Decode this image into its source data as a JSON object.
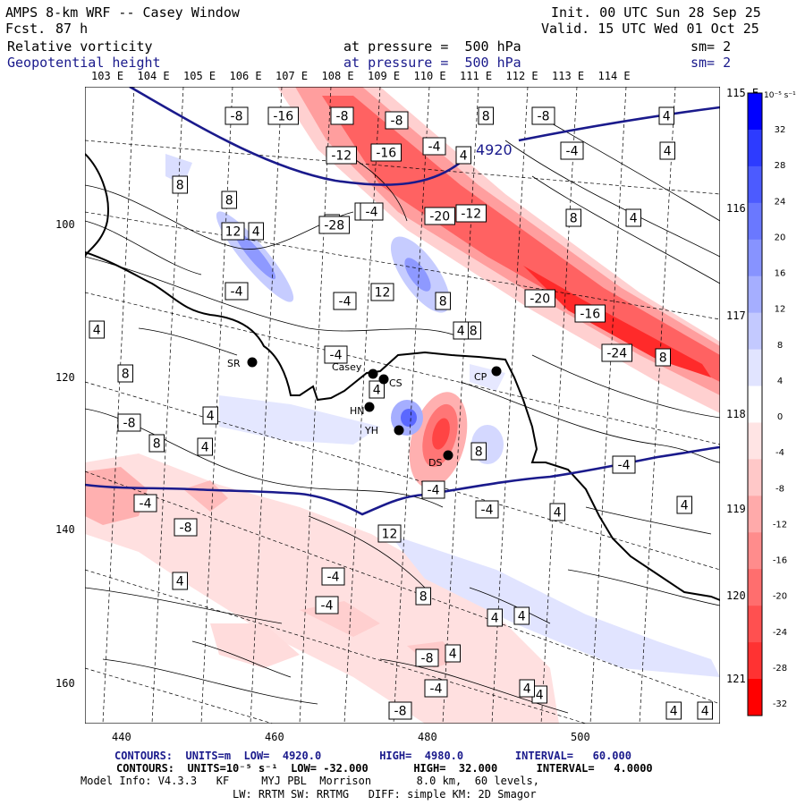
{
  "header": {
    "model_title": "AMPS 8-km WRF -- Casey Window",
    "fcst_label": "Fcst.",
    "fcst_value": "87 h",
    "init": "Init. 00 UTC Sun 28 Sep 25",
    "valid": "Valid. 15 UTC Wed 01 Oct 25",
    "field1_name": "Relative vorticity",
    "field1_level": "at pressure =  500 hPa",
    "field1_sm": "sm= 2",
    "field2_name": "Geopotential height",
    "field2_level": "at pressure =  500 hPa",
    "field2_sm": "sm= 2"
  },
  "top_lon_labels": [
    "103 E",
    "104 E",
    "105 E",
    "106 E",
    "107 E",
    "108 E",
    "109 E",
    "110 E",
    "111 E",
    "112 E",
    "113 E",
    "114 E"
  ],
  "right_lon_labels": [
    "115 E",
    "116 E",
    "117 E",
    "118 E",
    "119 E",
    "120 E",
    "121 E"
  ],
  "y_ticks": [
    "100",
    "120",
    "140",
    "160"
  ],
  "x_ticks": [
    "440",
    "460",
    "480",
    "500"
  ],
  "stations": [
    {
      "name": "SR"
    },
    {
      "name": "Casey"
    },
    {
      "name": "CS"
    },
    {
      "name": "CP"
    },
    {
      "name": "HN"
    },
    {
      "name": "YH"
    },
    {
      "name": "DS"
    }
  ],
  "height_contour_label": "4920",
  "vorticity_labels": [
    "-8",
    "-16",
    "-8",
    "-8",
    "8",
    "-8",
    "4",
    "-12",
    "-16",
    "-4",
    "4",
    "-4",
    "4",
    "8",
    "8",
    "-4",
    "-20",
    "-12",
    "8",
    "4",
    "12",
    "4",
    "4",
    "-4",
    "12",
    "-28",
    "-20",
    "-16",
    "-24",
    "8",
    "-4",
    "-4",
    "-4",
    "8",
    "4",
    "8",
    "4",
    "4",
    "8",
    "-8",
    "8",
    "4",
    "4",
    "-4",
    "12",
    "-8",
    "-8",
    "4",
    "4",
    "-4",
    "-4",
    "8",
    "4",
    "4",
    "-8",
    "-4",
    "4",
    "-8",
    "-4",
    "8",
    "4",
    "4",
    "4",
    "4",
    "4",
    "-4",
    "-4"
  ],
  "colorbar": {
    "unit": "10⁻⁵ s⁻¹",
    "ticks": [
      "32",
      "28",
      "24",
      "20",
      "16",
      "12",
      "8",
      "4",
      "0",
      "-4",
      "-8",
      "-12",
      "-16",
      "-20",
      "-24",
      "-28",
      "-32"
    ],
    "colors": [
      "#0000ff",
      "#2d3bff",
      "#4c5bff",
      "#6a78ff",
      "#8793ff",
      "#a5aeff",
      "#c3c9ff",
      "#e1e4ff",
      "#ffffff",
      "#ffe4e4",
      "#ffc8c8",
      "#ffaaaa",
      "#ff8c8c",
      "#ff6e6e",
      "#ff5050",
      "#ff3232",
      "#ff0000"
    ]
  },
  "footer": {
    "contours1": "CONTOURS:  UNITS=m  LOW=  4920.0         HIGH=  4980.0        INTERVAL=   60.000",
    "contours2": "CONTOURS:  UNITS=10⁻⁵ s⁻¹  LOW= -32.000       HIGH=  32.000      INTERVAL=   4.0000",
    "model_info": "Model Info: V4.3.3   KF     MYJ PBL  Morrison       8.0 km,  60 levels,",
    "model_info2": "LW: RRTM SW: RRTMG   DIFF: simple KM: 2D Smagor"
  }
}
